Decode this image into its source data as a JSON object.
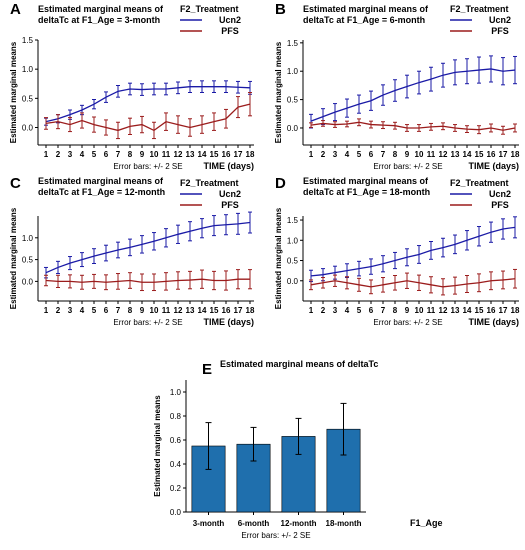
{
  "colors": {
    "ucn2": "#1a1aa6",
    "pfs": "#9b1c1c",
    "bar": "#1f6fad",
    "axis": "#000000"
  },
  "chart_data": [
    {
      "panel": "A",
      "type": "line",
      "title": "Estimated marginal means of deltaTc at F1_Age = 3-month",
      "title_lines": [
        "Estimated marginal means of",
        "deltaTc at F1_Age = 3-month"
      ],
      "legend_title": "F2_Treatment",
      "legend_position": "top-right",
      "ylabel": "Estimated marginal means",
      "xlabel": "TIME (days)",
      "note": "Error bars: +/- 2 SE",
      "x": [
        1,
        2,
        3,
        4,
        5,
        6,
        7,
        8,
        9,
        10,
        11,
        12,
        13,
        14,
        15,
        16,
        17,
        18
      ],
      "xticks": [
        "1",
        "2",
        "3",
        "4",
        "5",
        "6",
        "7",
        "8",
        "9",
        "10",
        "11",
        "12",
        "13",
        "14",
        "15",
        "16",
        "17",
        "18"
      ],
      "ylim": [
        -0.3,
        1.5
      ],
      "yticks": [
        "0.0",
        "0.5",
        "1.0",
        "1.5"
      ],
      "ytick_values": [
        0,
        0.5,
        1,
        1.5
      ],
      "series": [
        {
          "name": "Ucn2",
          "values": [
            0.1,
            0.15,
            0.22,
            0.3,
            0.4,
            0.52,
            0.62,
            0.66,
            0.65,
            0.66,
            0.66,
            0.68,
            0.7,
            0.7,
            0.7,
            0.7,
            0.69,
            0.68
          ],
          "err": [
            0.06,
            0.07,
            0.08,
            0.08,
            0.08,
            0.09,
            0.1,
            0.1,
            0.1,
            0.1,
            0.1,
            0.1,
            0.1,
            0.1,
            0.1,
            0.1,
            0.1,
            0.11
          ]
        },
        {
          "name": "PFS",
          "values": [
            0.07,
            0.1,
            0.05,
            0.12,
            0.05,
            0.0,
            -0.05,
            0.02,
            0.05,
            -0.05,
            0.1,
            0.05,
            0.0,
            0.05,
            0.1,
            0.15,
            0.35,
            0.4
          ],
          "err": [
            0.1,
            0.12,
            0.12,
            0.13,
            0.13,
            0.13,
            0.14,
            0.14,
            0.14,
            0.14,
            0.15,
            0.15,
            0.15,
            0.15,
            0.15,
            0.16,
            0.18,
            0.2
          ]
        }
      ]
    },
    {
      "panel": "B",
      "type": "line",
      "title": "Estimated marginal means of deltaTc at F1_Age = 6-month",
      "title_lines": [
        "Estimated marginal means of",
        "deltaTc at F1_Age = 6-month"
      ],
      "legend_title": "F2_Treatment",
      "legend_position": "top-right",
      "ylabel": "Estimated marginal means",
      "xlabel": "TIME (days)",
      "note": "Error bars: +/- 2 SE",
      "x": [
        1,
        2,
        3,
        4,
        5,
        6,
        7,
        8,
        9,
        10,
        11,
        12,
        13,
        14,
        15,
        16,
        17,
        18
      ],
      "xticks": [
        "1",
        "2",
        "3",
        "4",
        "5",
        "6",
        "7",
        "8",
        "9",
        "10",
        "11",
        "12",
        "13",
        "14",
        "15",
        "16",
        "17",
        "18"
      ],
      "ylim": [
        -0.3,
        1.55
      ],
      "yticks": [
        "0.0",
        "0.5",
        "1.0",
        "1.5"
      ],
      "ytick_values": [
        0,
        0.5,
        1,
        1.5
      ],
      "series": [
        {
          "name": "Ucn2",
          "values": [
            0.12,
            0.2,
            0.28,
            0.35,
            0.42,
            0.48,
            0.58,
            0.66,
            0.73,
            0.8,
            0.86,
            0.93,
            0.98,
            1.0,
            1.02,
            1.04,
            1.0,
            1.02
          ],
          "err": [
            0.12,
            0.14,
            0.15,
            0.16,
            0.16,
            0.17,
            0.18,
            0.19,
            0.2,
            0.2,
            0.21,
            0.21,
            0.22,
            0.22,
            0.23,
            0.23,
            0.24,
            0.24
          ]
        },
        {
          "name": "PFS",
          "values": [
            0.05,
            0.08,
            0.06,
            0.07,
            0.1,
            0.06,
            0.05,
            0.04,
            0.0,
            0.0,
            0.02,
            0.03,
            0.0,
            -0.02,
            -0.03,
            0.0,
            -0.04,
            0.0
          ],
          "err": [
            0.04,
            0.05,
            0.05,
            0.05,
            0.06,
            0.06,
            0.06,
            0.06,
            0.06,
            0.06,
            0.06,
            0.06,
            0.06,
            0.06,
            0.07,
            0.07,
            0.07,
            0.07
          ]
        }
      ]
    },
    {
      "panel": "C",
      "type": "line",
      "title": "Estimated marginal means of deltaTc at F1_Age = 12-month",
      "title_lines": [
        "Estimated marginal means of",
        "deltaTc at F1_Age = 12-month"
      ],
      "legend_title": "F2_Treatment",
      "legend_position": "top-right",
      "ylabel": "Estimated marginal means",
      "xlabel": "TIME (days)",
      "note": "Error bars: +/- 2 SE",
      "x": [
        1,
        2,
        3,
        4,
        5,
        6,
        7,
        8,
        9,
        10,
        11,
        12,
        13,
        14,
        15,
        16,
        17,
        18
      ],
      "xticks": [
        "1",
        "2",
        "3",
        "4",
        "5",
        "6",
        "7",
        "8",
        "9",
        "10",
        "11",
        "12",
        "13",
        "14",
        "15",
        "16",
        "17",
        "18"
      ],
      "ylim": [
        -0.45,
        1.5
      ],
      "yticks": [
        "0.0",
        "0.5",
        "1.0"
      ],
      "ytick_values": [
        0,
        0.5,
        1
      ],
      "series": [
        {
          "name": "Ucn2",
          "values": [
            0.2,
            0.32,
            0.42,
            0.5,
            0.58,
            0.65,
            0.72,
            0.78,
            0.85,
            0.92,
            1.0,
            1.08,
            1.15,
            1.22,
            1.28,
            1.3,
            1.32,
            1.35
          ],
          "err": [
            0.12,
            0.14,
            0.15,
            0.16,
            0.17,
            0.18,
            0.18,
            0.19,
            0.2,
            0.2,
            0.21,
            0.21,
            0.22,
            0.22,
            0.23,
            0.23,
            0.24,
            0.24
          ]
        },
        {
          "name": "PFS",
          "values": [
            0.02,
            0.0,
            0.0,
            -0.02,
            0.0,
            -0.02,
            0.0,
            0.02,
            -0.02,
            -0.02,
            0.0,
            0.02,
            0.03,
            0.05,
            0.02,
            0.02,
            0.05,
            0.05
          ],
          "err": [
            0.12,
            0.14,
            0.15,
            0.16,
            0.16,
            0.17,
            0.18,
            0.18,
            0.19,
            0.19,
            0.2,
            0.2,
            0.2,
            0.21,
            0.21,
            0.22,
            0.22,
            0.22
          ]
        }
      ]
    },
    {
      "panel": "D",
      "type": "line",
      "title": "Estimated marginal means of deltaTc at F1_Age = 18-month",
      "title_lines": [
        "Estimated marginal means of",
        "deltaTc at F1_Age = 18-month"
      ],
      "legend_title": "F2_Treatment",
      "legend_position": "top-right",
      "ylabel": "Estimated marginal means",
      "xlabel": "TIME (days)",
      "note": "Error bars: +/- 2 SE",
      "x": [
        1,
        2,
        3,
        4,
        5,
        6,
        7,
        8,
        9,
        10,
        11,
        12,
        13,
        14,
        15,
        16,
        17,
        18
      ],
      "xticks": [
        "1",
        "2",
        "3",
        "4",
        "5",
        "6",
        "7",
        "8",
        "9",
        "10",
        "11",
        "12",
        "13",
        "14",
        "15",
        "16",
        "17",
        "18"
      ],
      "ylim": [
        -0.5,
        1.6
      ],
      "yticks": [
        "0.0",
        "0.5",
        "1.0",
        "1.5"
      ],
      "ytick_values": [
        0,
        0.5,
        1,
        1.5
      ],
      "series": [
        {
          "name": "Ucn2",
          "values": [
            0.12,
            0.15,
            0.2,
            0.25,
            0.3,
            0.35,
            0.42,
            0.5,
            0.58,
            0.65,
            0.75,
            0.82,
            0.9,
            1.0,
            1.1,
            1.2,
            1.28,
            1.32
          ],
          "err": [
            0.14,
            0.15,
            0.16,
            0.17,
            0.18,
            0.19,
            0.2,
            0.2,
            0.21,
            0.22,
            0.22,
            0.23,
            0.23,
            0.24,
            0.24,
            0.25,
            0.25,
            0.26
          ]
        },
        {
          "name": "PFS",
          "values": [
            -0.1,
            -0.05,
            0.0,
            -0.05,
            -0.1,
            -0.15,
            -0.1,
            -0.05,
            0.0,
            -0.05,
            -0.1,
            -0.15,
            -0.12,
            -0.08,
            -0.05,
            0.0,
            0.02,
            0.05
          ],
          "err": [
            0.12,
            0.13,
            0.14,
            0.15,
            0.16,
            0.17,
            0.18,
            0.18,
            0.19,
            0.19,
            0.2,
            0.2,
            0.21,
            0.21,
            0.22,
            0.22,
            0.22,
            0.23
          ]
        }
      ]
    },
    {
      "panel": "E",
      "type": "bar",
      "title": "Estimated marginal means of deltaTc",
      "ylabel": "Estimated marginal means",
      "xlabel": "F1_Age",
      "note": "Error bars: +/- 2 SE",
      "categories": [
        "3-month",
        "6-month",
        "12-month",
        "18-month"
      ],
      "values": [
        0.55,
        0.565,
        0.63,
        0.69
      ],
      "err": [
        0.195,
        0.14,
        0.15,
        0.215
      ],
      "ylim": [
        0,
        1.1
      ],
      "yticks": [
        "0.0",
        "0.2",
        "0.4",
        "0.6",
        "0.8",
        "1.0"
      ],
      "ytick_values": [
        0,
        0.2,
        0.4,
        0.6,
        0.8,
        1.0
      ]
    }
  ]
}
